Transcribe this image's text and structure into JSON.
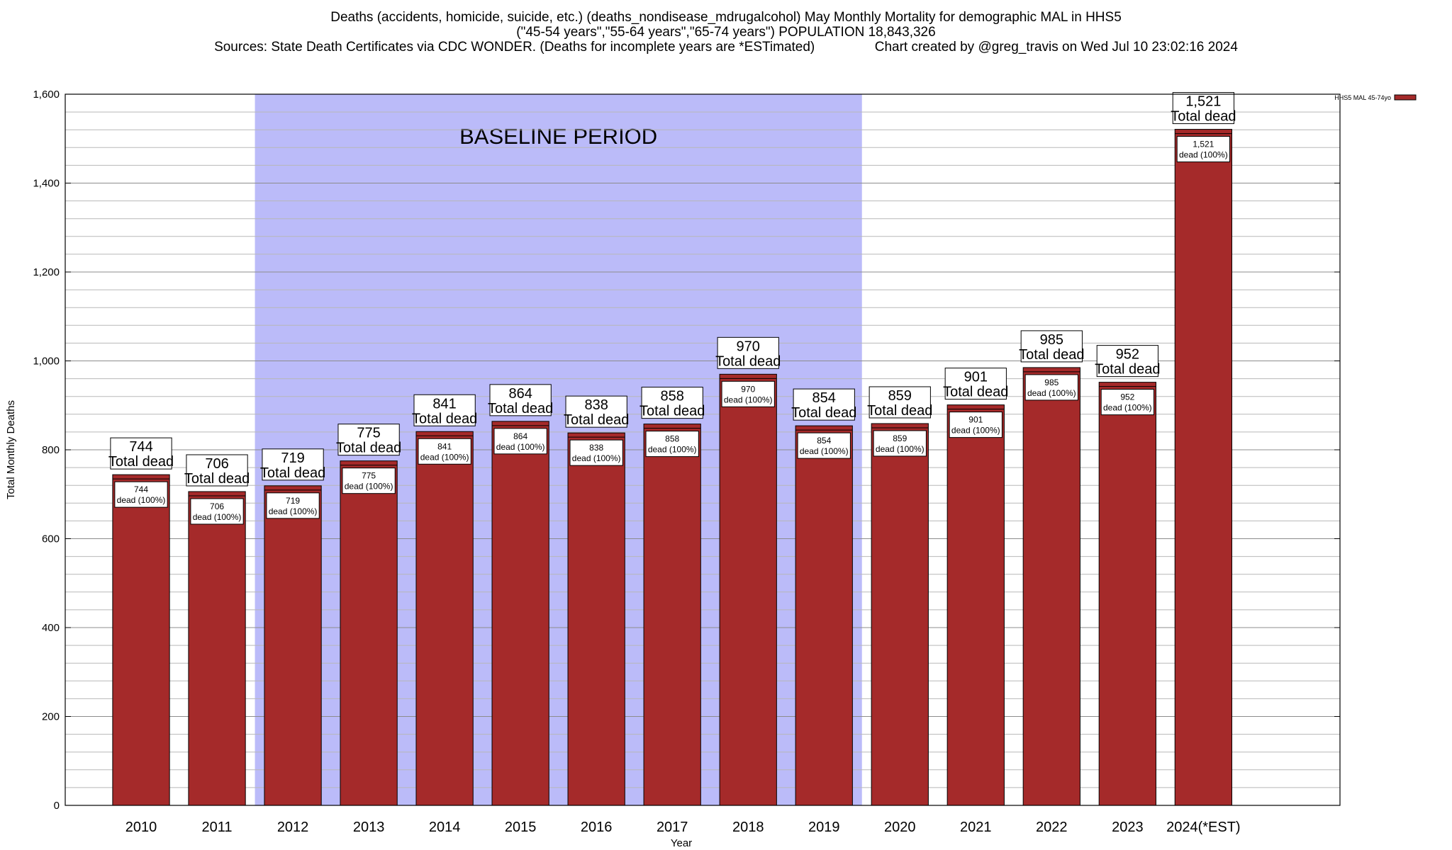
{
  "chart_data": {
    "type": "bar",
    "title_lines": [
      "Deaths (accidents, homicide, suicide, etc.) (deaths_nondisease_mdrugalcohol) May Monthly Mortality for demographic MAL in HHS5",
      "(\"45-54 years\",\"55-64 years\",\"65-74 years\") POPULATION 18,843,326",
      "Sources: State Death Certificates via CDC WONDER. (Deaths for incomplete years are *ESTimated)                Chart created by @greg_travis on Wed Jul 10 23:02:16 2024"
    ],
    "xlabel": "Year",
    "ylabel": "Total Monthly Deaths",
    "ylim": [
      0,
      1600
    ],
    "yticks": [
      0,
      200,
      400,
      600,
      800,
      1000,
      1200,
      1400,
      1600
    ],
    "ytick_labels": [
      "0",
      "200",
      "400",
      "600",
      "800",
      "1,000",
      "1,200",
      "1,400",
      "1,600"
    ],
    "minor_grid_step": 40,
    "grid": true,
    "categories": [
      "2010",
      "2011",
      "2012",
      "2013",
      "2014",
      "2015",
      "2016",
      "2017",
      "2018",
      "2019",
      "2020",
      "2021",
      "2022",
      "2023",
      "2024(*EST)"
    ],
    "values": [
      744,
      706,
      719,
      775,
      841,
      864,
      838,
      858,
      970,
      854,
      859,
      901,
      985,
      952,
      1521
    ],
    "value_labels": [
      "744",
      "706",
      "719",
      "775",
      "841",
      "864",
      "838",
      "858",
      "970",
      "854",
      "859",
      "901",
      "985",
      "952",
      "1,521"
    ],
    "total_label_text": "Total dead",
    "inner_label_text": "dead (100%)",
    "series": [
      {
        "name": "HHS5 MAL 45-74yo",
        "values": [
          744,
          706,
          719,
          775,
          841,
          864,
          838,
          858,
          970,
          854,
          859,
          901,
          985,
          952,
          1521
        ]
      }
    ],
    "bar_color": "#a52a2a",
    "baseline_shade_color": "#bbbbf9",
    "baseline_period": {
      "label": "BASELINE PERIOD",
      "from": "2012",
      "to": "2019"
    },
    "legend_position": "top-right"
  }
}
